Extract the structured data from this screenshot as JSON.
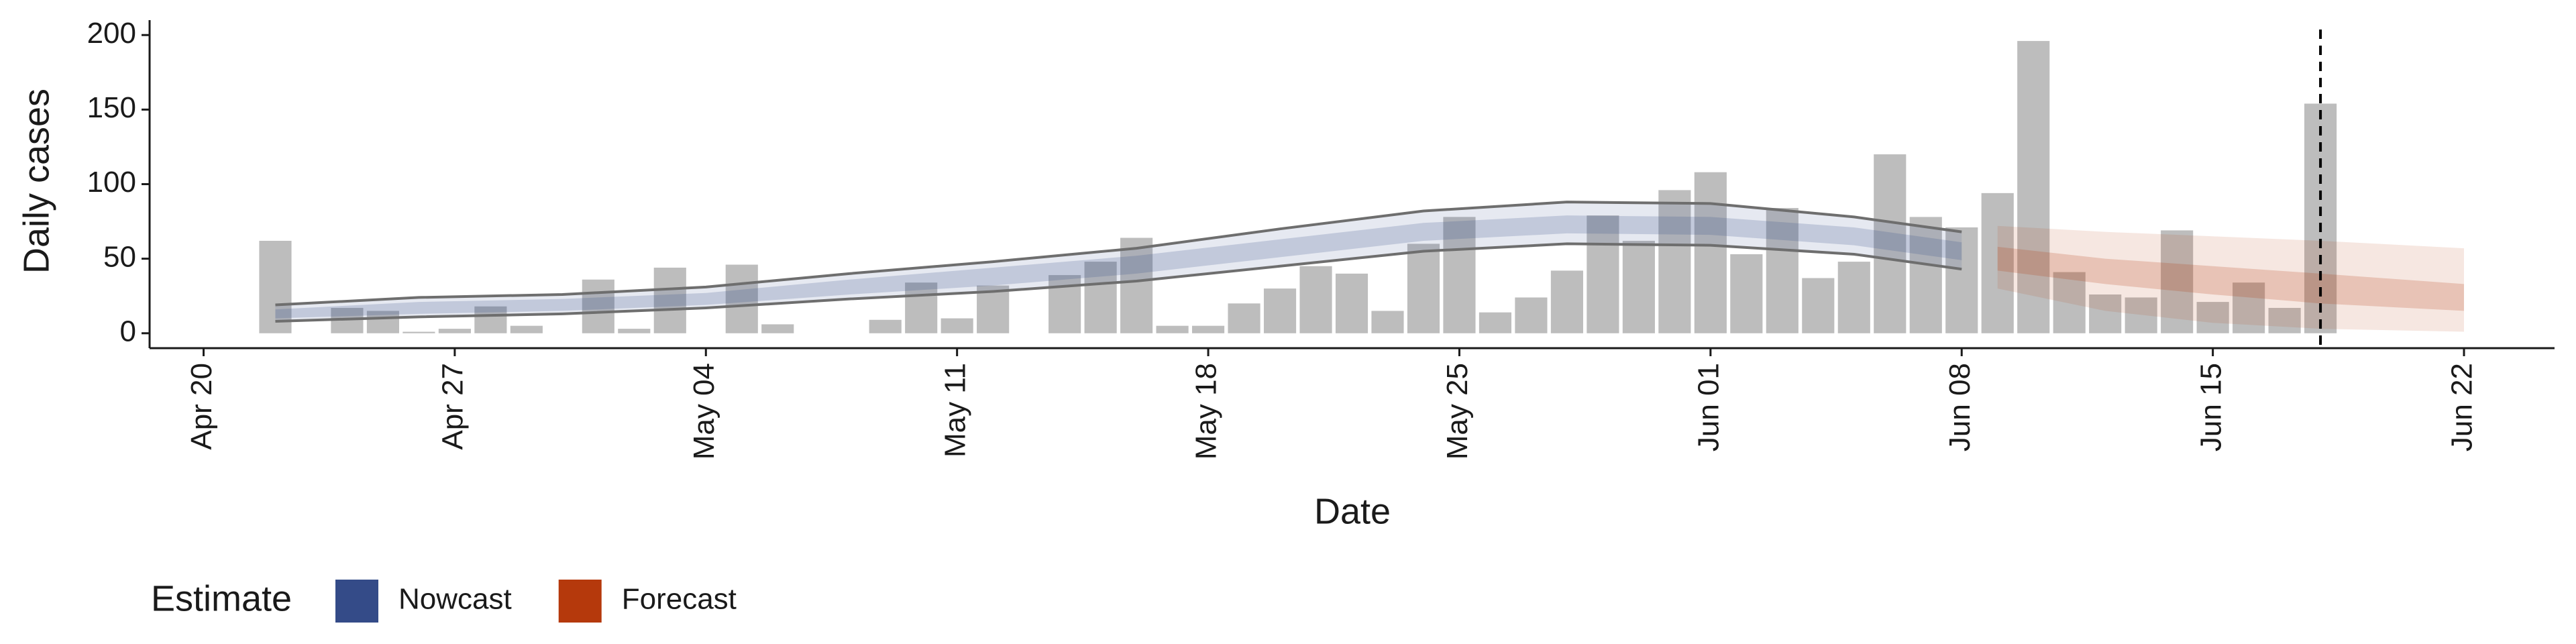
{
  "chart_data": {
    "type": "bar",
    "y_label": "Daily cases",
    "x_label": "Date",
    "x": [
      "Apr 22",
      "Apr 23",
      "Apr 24",
      "Apr 25",
      "Apr 26",
      "Apr 27",
      "Apr 28",
      "Apr 29",
      "Apr 30",
      "May 01",
      "May 02",
      "May 03",
      "May 04",
      "May 05",
      "May 06",
      "May 07",
      "May 08",
      "May 09",
      "May 10",
      "May 11",
      "May 12",
      "May 13",
      "May 14",
      "May 15",
      "May 16",
      "May 17",
      "May 18",
      "May 19",
      "May 20",
      "May 21",
      "May 22",
      "May 23",
      "May 24",
      "May 25",
      "May 26",
      "May 27",
      "May 28",
      "May 29",
      "May 30",
      "May 31",
      "Jun 01",
      "Jun 02",
      "Jun 03",
      "Jun 04",
      "Jun 05",
      "Jun 06",
      "Jun 07",
      "Jun 08",
      "Jun 09",
      "Jun 10",
      "Jun 11",
      "Jun 12",
      "Jun 13",
      "Jun 14",
      "Jun 15",
      "Jun 16",
      "Jun 17",
      "Jun 18"
    ],
    "values": [
      62,
      0,
      17,
      15,
      1,
      3,
      18,
      5,
      0,
      36,
      3,
      44,
      0,
      46,
      6,
      0,
      0,
      9,
      34,
      10,
      32,
      0,
      39,
      48,
      64,
      5,
      5,
      20,
      30,
      45,
      40,
      15,
      60,
      78,
      14,
      24,
      42,
      79,
      62,
      96,
      108,
      53,
      84,
      37,
      48,
      120,
      78,
      71,
      94,
      196,
      41,
      26,
      24,
      69,
      21,
      34,
      17,
      154
    ],
    "color": "#bdbdbd",
    "vline": "Jun 18",
    "legend_title": "Estimate",
    "ribbons": [
      {
        "name": "Nowcast",
        "color": "#344b88",
        "outline": true,
        "x": [
          "Apr 22",
          "Apr 26",
          "Apr 30",
          "May 04",
          "May 08",
          "May 12",
          "May 16",
          "May 20",
          "May 24",
          "May 28",
          "Jun 01",
          "Jun 05",
          "Jun 08"
        ],
        "lower90": [
          8,
          11,
          13,
          17,
          23,
          28,
          35,
          45,
          55,
          60,
          59,
          53,
          43
        ],
        "lower50": [
          10,
          13,
          15,
          19,
          26,
          32,
          40,
          51,
          62,
          67,
          66,
          59,
          49
        ],
        "upper50": [
          16,
          21,
          23,
          27,
          36,
          44,
          52,
          63,
          74,
          79,
          78,
          71,
          61
        ],
        "upper90": [
          19,
          24,
          26,
          31,
          40,
          48,
          57,
          70,
          82,
          88,
          87,
          78,
          68
        ]
      },
      {
        "name": "Forecast",
        "color": "#b5390c",
        "outline": false,
        "x": [
          "Jun 09",
          "Jun 12",
          "Jun 15",
          "Jun 18",
          "Jun 22"
        ],
        "lower90": [
          30,
          15,
          7,
          3,
          1
        ],
        "lower50": [
          42,
          33,
          26,
          20,
          15
        ],
        "upper50": [
          58,
          50,
          45,
          40,
          33
        ],
        "upper90": [
          72,
          68,
          65,
          62,
          57
        ]
      }
    ],
    "xlim": [
      "Apr 19",
      "Jun 24"
    ],
    "xticks": [
      "Apr 20",
      "Apr 27",
      "May 04",
      "May 11",
      "May 18",
      "May 25",
      "Jun 01",
      "Jun 08",
      "Jun 15",
      "Jun 22"
    ],
    "ylim": [
      -10,
      210
    ],
    "yticks": [
      0,
      50,
      100,
      150,
      200
    ]
  }
}
